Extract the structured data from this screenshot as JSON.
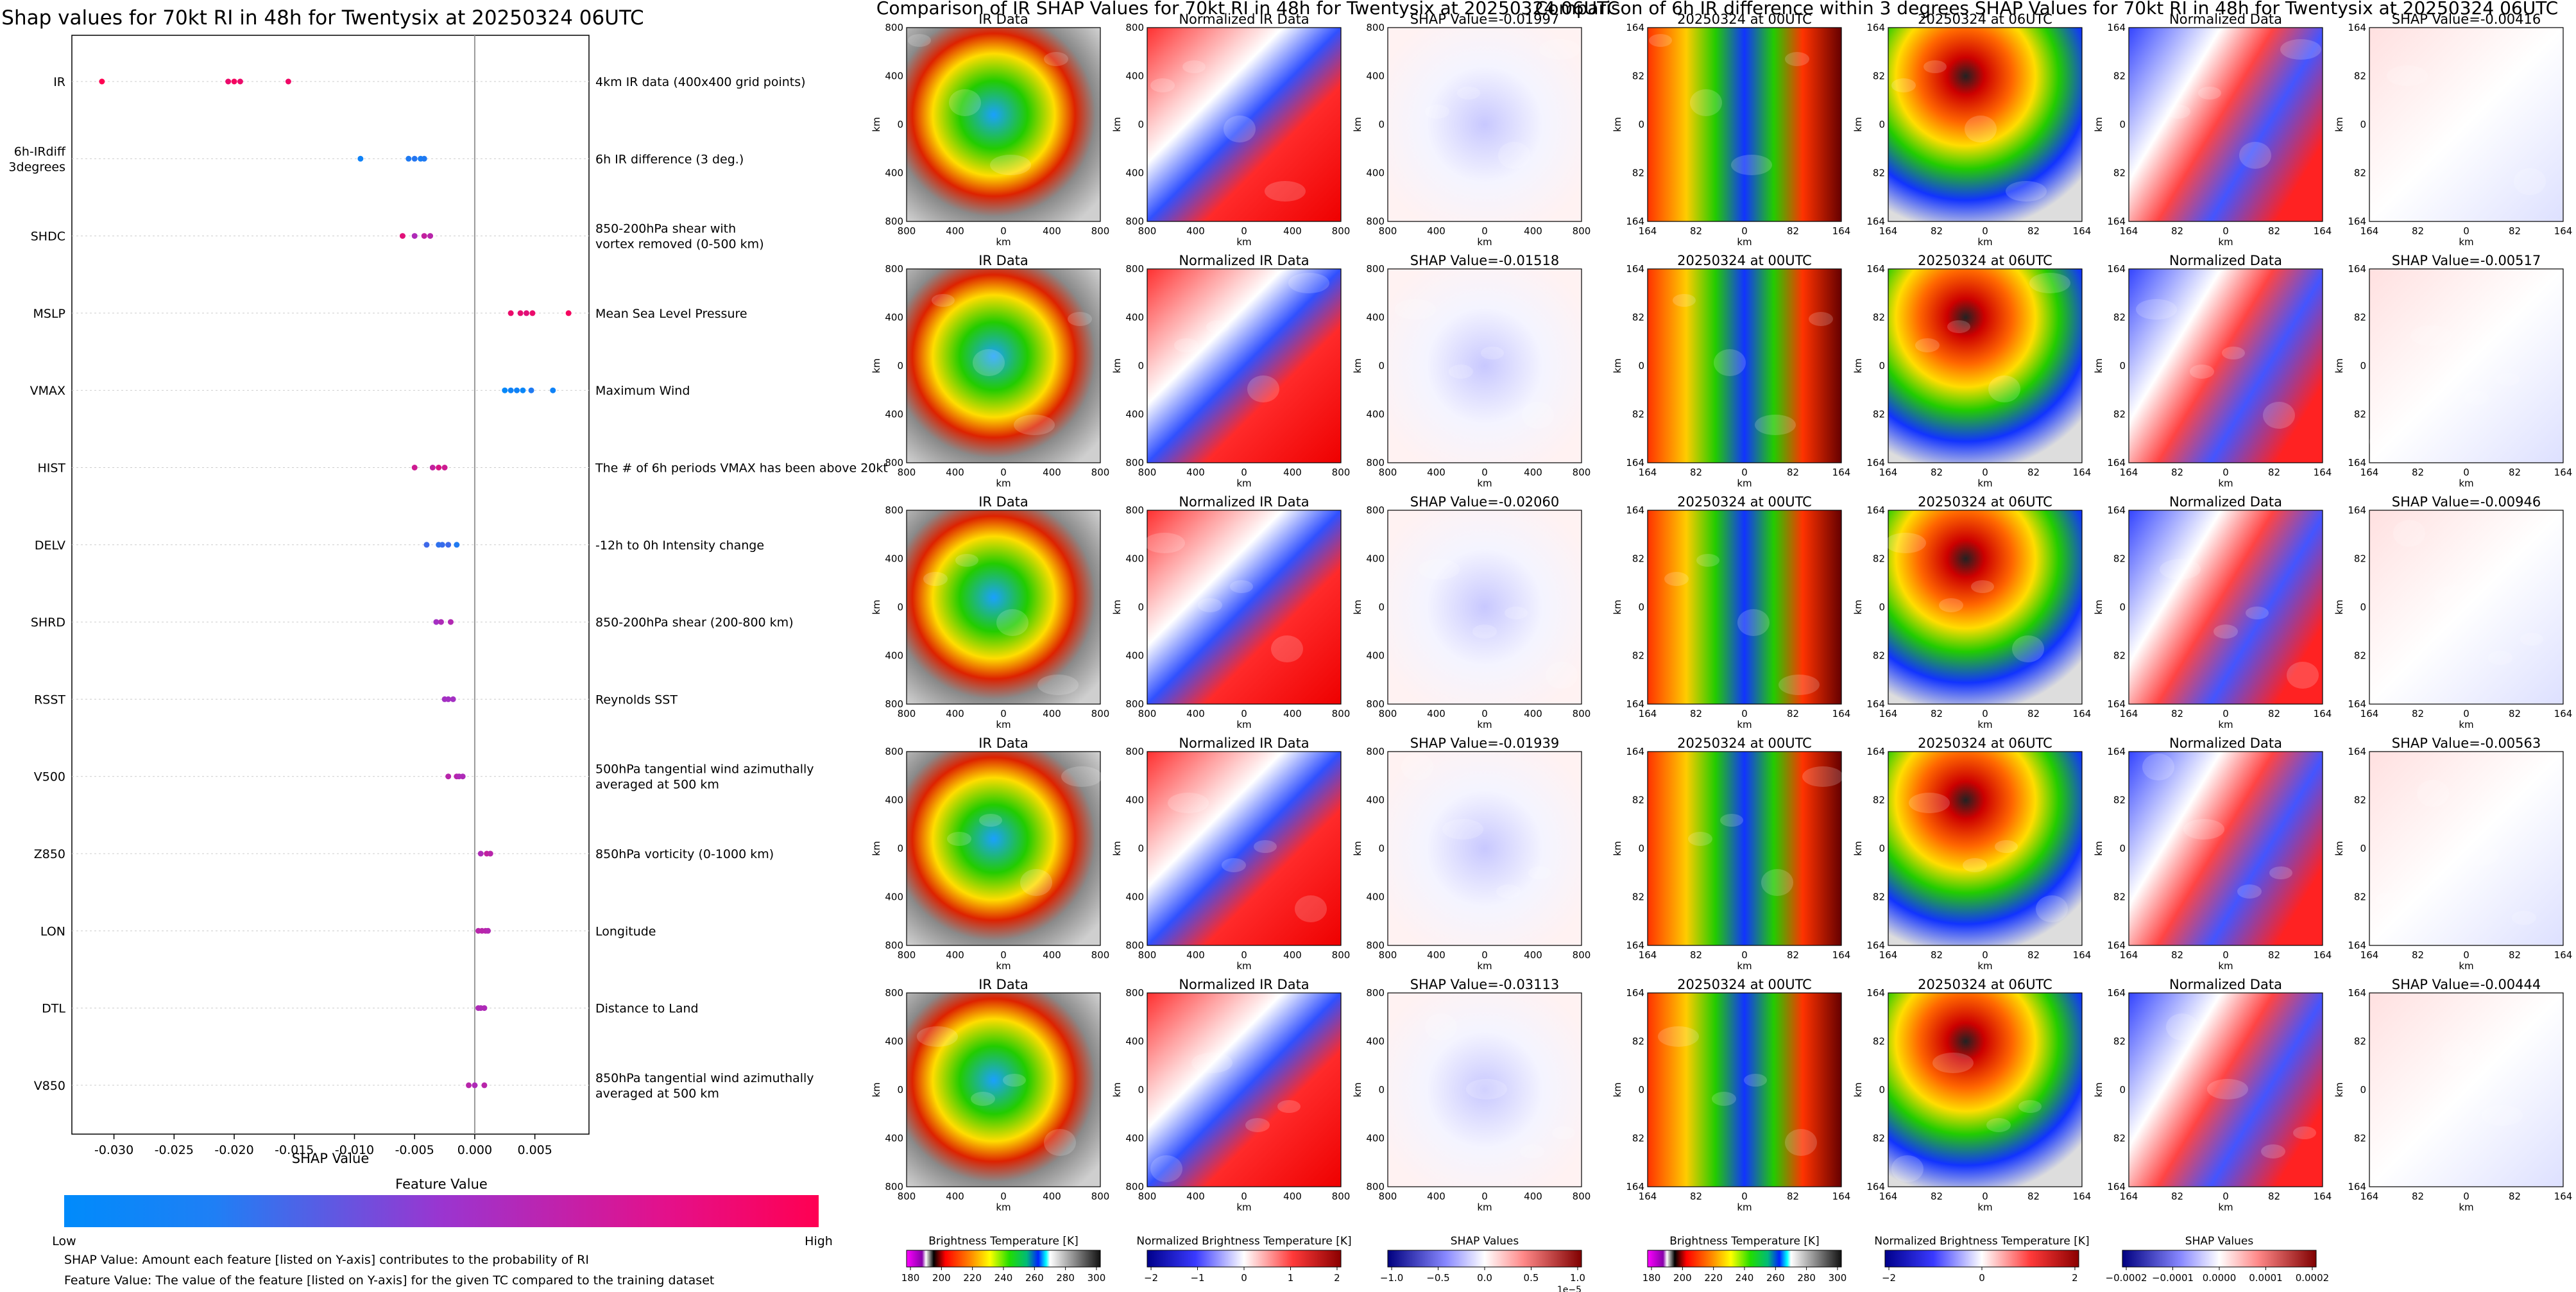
{
  "chart_data": [
    {
      "type": "scatter",
      "title": "Shap values for 70kt RI in 48h for Twentysix at 20250324 06UTC",
      "xlabel": "SHAP Value",
      "xlim": [
        -0.0335,
        0.0095
      ],
      "x_ticks": [
        "-0.030",
        "-0.025",
        "-0.020",
        "-0.015",
        "-0.010",
        "-0.005",
        "0.000",
        "0.005"
      ],
      "x_tick_values": [
        -0.03,
        -0.025,
        -0.02,
        -0.015,
        -0.01,
        -0.005,
        0.0,
        0.005
      ],
      "features": [
        {
          "short": [
            "IR"
          ],
          "desc": [
            "4km IR data (400x400 grid points)"
          ],
          "points": [
            [
              -0.031,
              1.0
            ],
            [
              -0.0205,
              0.9
            ],
            [
              -0.02,
              0.95
            ],
            [
              -0.0195,
              0.9
            ],
            [
              -0.0155,
              0.92
            ]
          ]
        },
        {
          "short": [
            "6h-IRdiff",
            "3degrees"
          ],
          "desc": [
            "6h IR difference (3 deg.)"
          ],
          "points": [
            [
              -0.0095,
              0.05
            ],
            [
              -0.0055,
              0.1
            ],
            [
              -0.005,
              0.12
            ],
            [
              -0.0045,
              0.08
            ],
            [
              -0.0042,
              0.1
            ]
          ]
        },
        {
          "short": [
            "SHDC"
          ],
          "desc": [
            "850-200hPa shear with",
            "vortex removed (0-500 km)"
          ],
          "points": [
            [
              -0.006,
              0.85
            ],
            [
              -0.005,
              0.6
            ],
            [
              -0.0042,
              0.7
            ],
            [
              -0.0037,
              0.65
            ]
          ]
        },
        {
          "short": [
            "MSLP"
          ],
          "desc": [
            "Mean Sea Level Pressure"
          ],
          "points": [
            [
              0.003,
              0.9
            ],
            [
              0.0038,
              0.88
            ],
            [
              0.0043,
              0.85
            ],
            [
              0.0048,
              0.9
            ],
            [
              0.0078,
              0.95
            ]
          ]
        },
        {
          "short": [
            "VMAX"
          ],
          "desc": [
            "Maximum Wind"
          ],
          "points": [
            [
              0.0025,
              0.02
            ],
            [
              0.003,
              0.05
            ],
            [
              0.0035,
              0.05
            ],
            [
              0.004,
              0.03
            ],
            [
              0.0047,
              0.1
            ],
            [
              0.0065,
              0.05
            ]
          ]
        },
        {
          "short": [
            "HIST"
          ],
          "desc": [
            "The # of 6h periods VMAX has been above 20kt"
          ],
          "points": [
            [
              -0.005,
              0.75
            ],
            [
              -0.0035,
              0.7
            ],
            [
              -0.003,
              0.8
            ],
            [
              -0.0025,
              0.75
            ]
          ]
        },
        {
          "short": [
            "DELV"
          ],
          "desc": [
            "-12h to 0h Intensity change"
          ],
          "points": [
            [
              -0.004,
              0.2
            ],
            [
              -0.003,
              0.15
            ],
            [
              -0.0027,
              0.18
            ],
            [
              -0.0022,
              0.2
            ],
            [
              -0.0015,
              0.1
            ]
          ]
        },
        {
          "short": [
            "SHRD"
          ],
          "desc": [
            "850-200hPa shear (200-800 km)"
          ],
          "points": [
            [
              -0.0032,
              0.55
            ],
            [
              -0.0028,
              0.6
            ],
            [
              -0.002,
              0.62
            ]
          ]
        },
        {
          "short": [
            "RSST"
          ],
          "desc": [
            "Reynolds SST"
          ],
          "points": [
            [
              -0.0025,
              0.55
            ],
            [
              -0.0022,
              0.55
            ],
            [
              -0.0018,
              0.55
            ]
          ]
        },
        {
          "short": [
            "V500"
          ],
          "desc": [
            "500hPa tangential wind azimuthally",
            "averaged at 500 km"
          ],
          "points": [
            [
              -0.0022,
              0.65
            ],
            [
              -0.0015,
              0.65
            ],
            [
              -0.0013,
              0.6
            ],
            [
              -0.001,
              0.6
            ]
          ]
        },
        {
          "short": [
            "Z850"
          ],
          "desc": [
            "850hPa vorticity (0-1000 km)"
          ],
          "points": [
            [
              0.0005,
              0.6
            ],
            [
              0.001,
              0.7
            ],
            [
              0.0013,
              0.65
            ]
          ]
        },
        {
          "short": [
            "LON"
          ],
          "desc": [
            "Longitude"
          ],
          "points": [
            [
              0.0003,
              0.65
            ],
            [
              0.0006,
              0.65
            ],
            [
              0.0009,
              0.65
            ],
            [
              0.0011,
              0.62
            ]
          ]
        },
        {
          "short": [
            "DTL"
          ],
          "desc": [
            "Distance to Land"
          ],
          "points": [
            [
              0.0003,
              0.6
            ],
            [
              0.0005,
              0.6
            ],
            [
              0.0008,
              0.6
            ]
          ]
        },
        {
          "short": [
            "V850"
          ],
          "desc": [
            "850hPa tangential wind azimuthally",
            "averaged at 500 km"
          ],
          "points": [
            [
              -0.0005,
              0.65
            ],
            [
              0.0,
              0.6
            ],
            [
              0.0008,
              0.65
            ]
          ]
        }
      ],
      "colorbar": {
        "title": "Feature Value",
        "low": "Low",
        "high": "High",
        "low_color": "#008bfb",
        "high_color": "#ff0052"
      },
      "notes": [
        "SHAP Value: Amount each feature [listed on Y-axis] contributes to the probability of RI",
        "Feature Value: The value of the feature [listed on Y-axis] for the given TC compared to the training dataset"
      ]
    },
    {
      "type": "heatmap",
      "title": "Comparison of IR SHAP Values for 70kt RI in 48h for Twentysix at 20250324 06UTC",
      "axis_label": "km",
      "ticks": [
        "800",
        "400",
        "0",
        "400",
        "800"
      ],
      "column_titles": [
        "IR Data",
        "Normalized IR Data"
      ],
      "shap_titles": [
        "SHAP Value=-0.01997",
        "SHAP Value=-0.01518",
        "SHAP Value=-0.02060",
        "SHAP Value=-0.01939",
        "SHAP Value=-0.03113"
      ],
      "colorbars": [
        {
          "label": "Brightness Temperature [K]",
          "ticks": [
            "180",
            "200",
            "220",
            "240",
            "260",
            "280",
            "300"
          ],
          "offset": ""
        },
        {
          "label": "Normalized Brightness Temperature [K]",
          "ticks": [
            "−2",
            "−1",
            "0",
            "1",
            "2"
          ],
          "offset": ""
        },
        {
          "label": "SHAP Values",
          "ticks": [
            "−1.0",
            "−0.5",
            "0.0",
            "0.5",
            "1.0"
          ],
          "offset": "1e−5"
        }
      ]
    },
    {
      "type": "heatmap",
      "title": "Comparison of 6h IR difference within 3 degrees SHAP Values for 70kt RI in 48h for Twentysix at 20250324 06UTC",
      "axis_label": "km",
      "ticks": [
        "164",
        "82",
        "0",
        "82",
        "164"
      ],
      "column_titles": [
        "20250324 at 00UTC",
        "20250324 at 06UTC",
        "Normalized Data"
      ],
      "shap_titles": [
        "SHAP Value=-0.00416",
        "SHAP Value=-0.00517",
        "SHAP Value=-0.00946",
        "SHAP Value=-0.00563",
        "SHAP Value=-0.00444"
      ],
      "colorbars": [
        {
          "label": "Brightness Temperature [K]",
          "ticks": [
            "180",
            "200",
            "220",
            "240",
            "260",
            "280",
            "300"
          ],
          "offset": ""
        },
        {
          "label": "Normalized Brightness Temperature [K]",
          "ticks": [
            "−2",
            "0",
            "2"
          ],
          "offset": ""
        },
        {
          "label": "SHAP Values",
          "ticks": [
            "−0.0002",
            "−0.0001",
            "0.0000",
            "0.0001",
            "0.0002"
          ],
          "offset": ""
        }
      ]
    }
  ]
}
